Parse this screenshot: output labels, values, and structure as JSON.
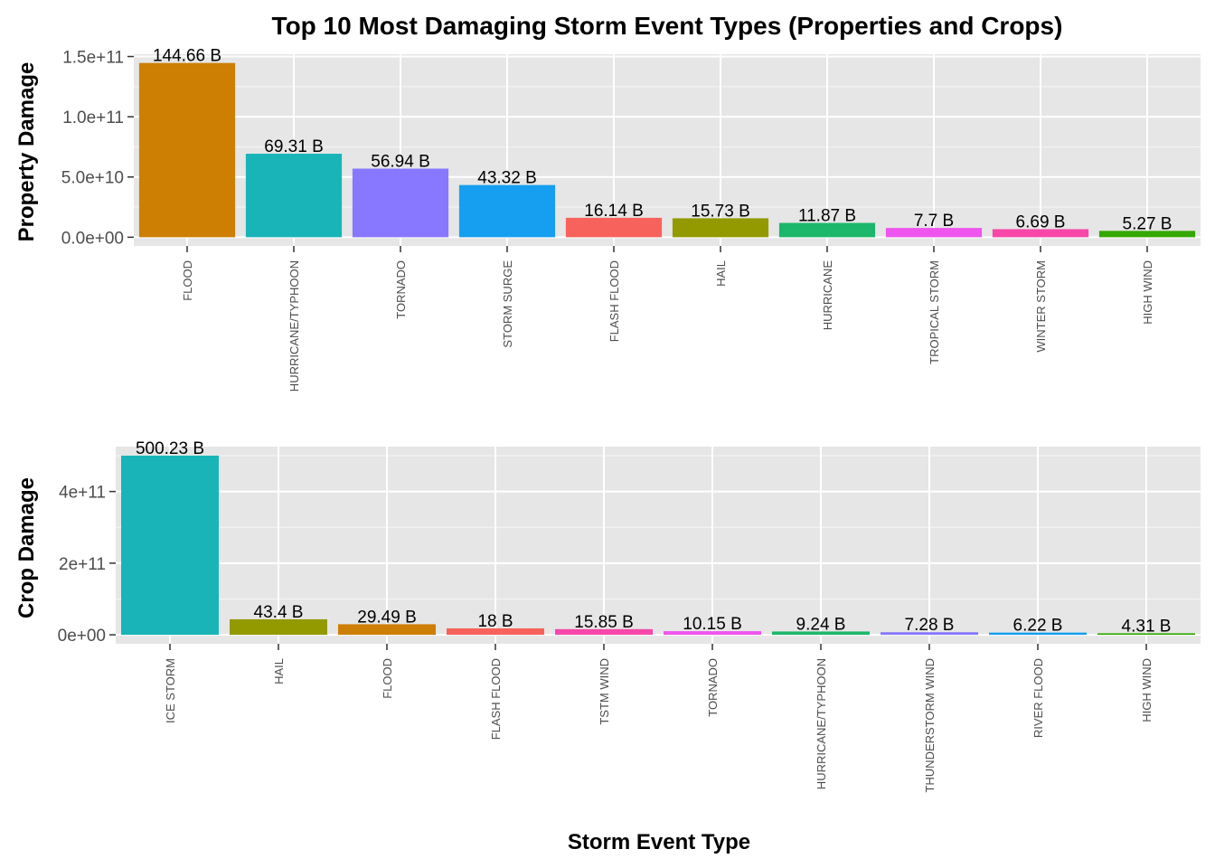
{
  "title": "Top 10 Most Damaging Storm Event Types (Properties and Crops)",
  "xlabel": "Storm Event Type",
  "chart_data": [
    {
      "type": "bar",
      "ylabel": "Property Damage",
      "categories": [
        "FLOOD",
        "HURRICANE/TYPHOON",
        "TORNADO",
        "STORM SURGE",
        "FLASH FLOOD",
        "HAIL",
        "HURRICANE",
        "TROPICAL STORM",
        "WINTER STORM",
        "HIGH WIND"
      ],
      "values": [
        144660000000,
        69310000000,
        56940000000,
        43320000000,
        16140000000,
        15730000000,
        11870000000,
        7700000000,
        6690000000,
        5270000000
      ],
      "data_labels": [
        "144.66 B",
        "69.31 B",
        "56.94 B",
        "43.32 B",
        "16.14 B",
        "15.73 B",
        "11.87 B",
        "7.7 B",
        "6.69 B",
        "5.27 B"
      ],
      "colors": [
        "#CD7F03",
        "#19B4B8",
        "#8877FF",
        "#169FF0",
        "#F8625C",
        "#939A00",
        "#1DB76B",
        "#EE55EE",
        "#F747A9",
        "#34A800"
      ],
      "ylim": [
        -7233000000,
        151893000000
      ],
      "yticks": [
        0,
        50000000000,
        100000000000,
        150000000000
      ],
      "ytick_labels": [
        "0.0e+00",
        "5.0e+10",
        "1.0e+11",
        "1.5e+11"
      ]
    },
    {
      "type": "bar",
      "ylabel": "Crop Damage",
      "categories": [
        "ICE STORM",
        "HAIL",
        "FLOOD",
        "FLASH FLOOD",
        "TSTM WIND",
        "TORNADO",
        "HURRICANE/TYPHOON",
        "THUNDERSTORM WIND",
        "RIVER FLOOD",
        "HIGH WIND"
      ],
      "values": [
        500230000000,
        43400000000,
        29490000000,
        18000000000,
        15850000000,
        10150000000,
        9240000000,
        7280000000,
        6220000000,
        4310000000
      ],
      "data_labels": [
        "500.23 B",
        "43.4 B",
        "29.49 B",
        "18 B",
        "15.85 B",
        "10.15 B",
        "9.24 B",
        "7.28 B",
        "6.22 B",
        "4.31 B"
      ],
      "colors": [
        "#19B4B8",
        "#939A00",
        "#CD7F03",
        "#F8625C",
        "#F747A9",
        "#EE55EE",
        "#1DB76B",
        "#8877FF",
        "#169FF0",
        "#34A800"
      ],
      "ylim": [
        -25011500000,
        525241500000
      ],
      "yticks": [
        0,
        200000000000,
        400000000000
      ],
      "ytick_labels": [
        "0e+00",
        "2e+11",
        "4e+11"
      ]
    }
  ]
}
